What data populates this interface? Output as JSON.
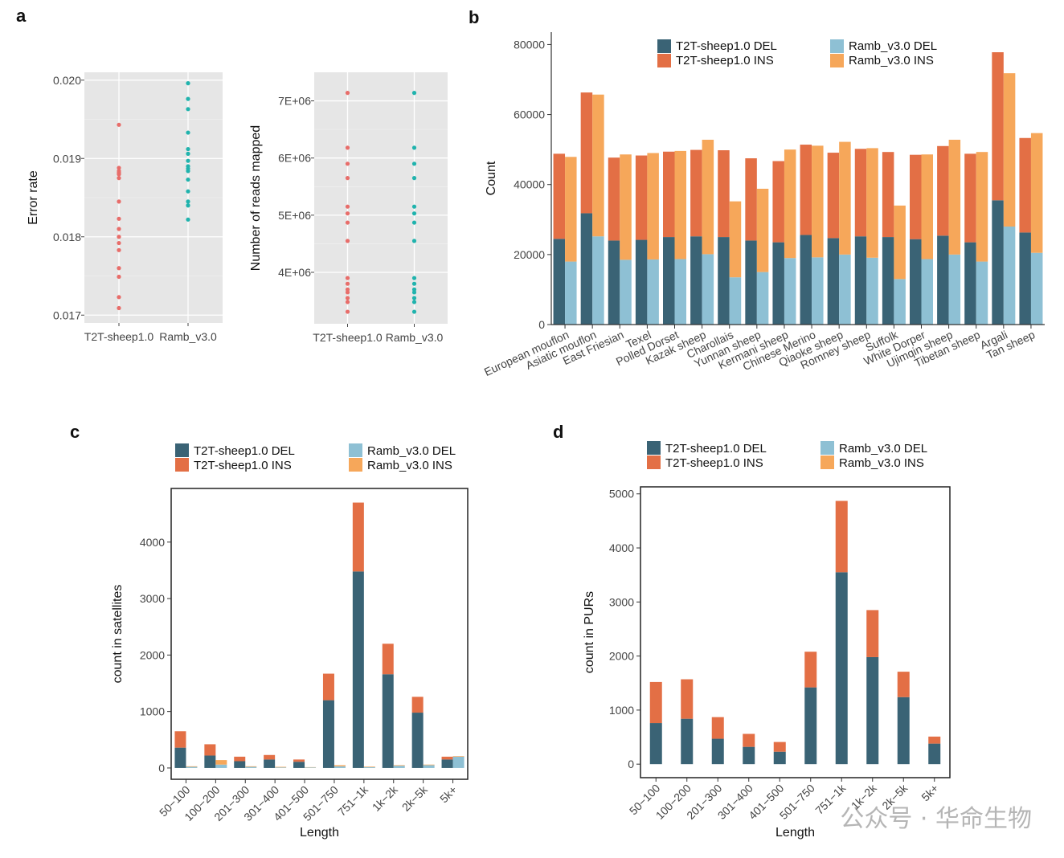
{
  "panel_labels": {
    "a": "a",
    "b": "b",
    "c": "c",
    "d": "d"
  },
  "colors": {
    "t2t_del": "#3a6375",
    "t2t_ins": "#e36f45",
    "ramb_del": "#8ec0d4",
    "ramb_ins": "#f6a75a",
    "dot_t2t": "#e86d6a",
    "dot_ramb": "#20b3ad",
    "panel_bg": "#e6e6e6"
  },
  "legend": {
    "t2t_del": "T2T-sheep1.0 DEL",
    "t2t_ins": "T2T-sheep1.0 INS",
    "ramb_del": "Ramb_v3.0 DEL",
    "ramb_ins": "Ramb_v3.0 INS"
  },
  "watermark": "公众号 · 华命生物",
  "chart_data": [
    {
      "type": "scatter",
      "panel": "a-left",
      "ylabel": "Error rate",
      "categories": [
        "T2T-sheep1.0",
        "Ramb_v3.0"
      ],
      "ylim": [
        0.0169,
        0.0201
      ],
      "yticks": [
        0.017,
        0.018,
        0.019,
        0.02
      ],
      "ytick_labels": [
        "0.017",
        "0.018",
        "0.019",
        "0.020"
      ],
      "series": [
        {
          "values": [
            0.01943,
            0.01888,
            0.01884,
            0.01882,
            0.0188,
            0.0188,
            0.01875,
            0.01845,
            0.01823,
            0.0181,
            0.018,
            0.01792,
            0.01783,
            0.0176,
            0.01749,
            0.01723,
            0.01709
          ]
        },
        {
          "values": [
            0.01996,
            0.01976,
            0.01963,
            0.01933,
            0.01912,
            0.01906,
            0.01897,
            0.0189,
            0.01887,
            0.01884,
            0.01873,
            0.01858,
            0.01845,
            0.0184,
            0.01822
          ]
        }
      ]
    },
    {
      "type": "scatter",
      "panel": "a-right",
      "ylabel": "Number of reads mapped",
      "categories": [
        "T2T-sheep1.0",
        "Ramb_v3.0"
      ],
      "ylim": [
        3100000,
        7500000
      ],
      "yticks": [
        4000000,
        5000000,
        6000000,
        7000000
      ],
      "ytick_labels": [
        "4E+06",
        "5E+06",
        "6E+06",
        "7E+06"
      ],
      "series": [
        {
          "values": [
            7140000,
            6180000,
            5900000,
            5650000,
            5150000,
            5030000,
            4870000,
            4550000,
            3900000,
            3800000,
            3700000,
            3650000,
            3550000,
            3480000,
            3310000
          ]
        },
        {
          "values": [
            7140000,
            6180000,
            5900000,
            5650000,
            5150000,
            5030000,
            4870000,
            4550000,
            3900000,
            3800000,
            3700000,
            3650000,
            3550000,
            3480000,
            3310000
          ]
        }
      ]
    },
    {
      "type": "bar",
      "panel": "b",
      "ylabel": "Count",
      "ylim": [
        0,
        84000
      ],
      "yticks": [
        0,
        20000,
        40000,
        60000,
        80000
      ],
      "categories": [
        "European mouflon",
        "Asiatic mouflon",
        "East Friesian",
        "Texel",
        "Polled Dorset",
        "Kazak sheep",
        "Charollais",
        "Yunnan sheep",
        "Kermani sheep",
        "Chinese Merino",
        "Qiaoke sheep",
        "Romney sheep",
        "Suffolk",
        "White Dorper",
        "Ujimqin sheep",
        "Tibetan sheep",
        "Argali",
        "Tan sheep"
      ],
      "series": [
        {
          "name": "T2T-sheep1.0 DEL",
          "stack": "t2t",
          "values": [
            24500,
            31800,
            24000,
            24200,
            25000,
            25200,
            25000,
            24000,
            23500,
            25600,
            24700,
            25200,
            25000,
            24400,
            25400,
            23500,
            35500,
            26300
          ]
        },
        {
          "name": "T2T-sheep1.0 INS",
          "stack": "t2t",
          "values": [
            24300,
            34500,
            23700,
            24100,
            24400,
            24700,
            24800,
            23500,
            23200,
            25800,
            24400,
            25000,
            24300,
            24100,
            25600,
            25300,
            42300,
            27000
          ]
        },
        {
          "name": "Ramb_v3.0 DEL",
          "stack": "ramb",
          "values": [
            18000,
            25200,
            18500,
            18600,
            18700,
            20100,
            13500,
            15000,
            19000,
            19200,
            20000,
            19100,
            13000,
            18700,
            20000,
            18000,
            28000,
            20500
          ]
        },
        {
          "name": "Ramb_v3.0 INS",
          "stack": "ramb",
          "values": [
            29900,
            40500,
            30100,
            30400,
            30900,
            32700,
            21700,
            23800,
            31000,
            31900,
            32200,
            31300,
            21000,
            29900,
            32800,
            31300,
            43800,
            34200
          ]
        }
      ]
    },
    {
      "type": "bar",
      "panel": "c",
      "xlabel": "Length",
      "ylabel": "count in satellites",
      "ylim": [
        -200,
        4950
      ],
      "yticks": [
        0,
        1000,
        2000,
        3000,
        4000
      ],
      "categories": [
        "50−100",
        "100−200",
        "201−300",
        "301−400",
        "401−500",
        "501−750",
        "751−1k",
        "1k−2k",
        "2k−5k",
        "5k+"
      ],
      "series": [
        {
          "name": "T2T-sheep1.0 DEL",
          "stack": "t2t",
          "values": [
            360,
            220,
            120,
            150,
            110,
            1200,
            3480,
            1660,
            980,
            150
          ]
        },
        {
          "name": "T2T-sheep1.0 INS",
          "stack": "t2t",
          "values": [
            290,
            200,
            80,
            80,
            40,
            470,
            1220,
            540,
            280,
            50
          ]
        },
        {
          "name": "Ramb_v3.0 DEL",
          "stack": "ramb",
          "values": [
            20,
            60,
            20,
            10,
            10,
            30,
            15,
            40,
            50,
            200
          ]
        },
        {
          "name": "Ramb_v3.0 INS",
          "stack": "ramb",
          "values": [
            10,
            80,
            10,
            10,
            5,
            20,
            10,
            10,
            10,
            10
          ]
        }
      ]
    },
    {
      "type": "bar",
      "panel": "d",
      "xlabel": "Length",
      "ylabel": "count in PURs",
      "ylim": [
        -250,
        5130
      ],
      "yticks": [
        0,
        1000,
        2000,
        3000,
        4000,
        5000
      ],
      "categories": [
        "50−100",
        "100−200",
        "201−300",
        "301−400",
        "401−500",
        "501−750",
        "751−1k",
        "1k−2k",
        "2k−5k",
        "5k+"
      ],
      "series": [
        {
          "name": "T2T-sheep1.0 DEL",
          "stack": "t2t",
          "values": [
            760,
            840,
            470,
            320,
            230,
            1420,
            3550,
            1980,
            1240,
            380
          ]
        },
        {
          "name": "T2T-sheep1.0 INS",
          "stack": "t2t",
          "values": [
            760,
            730,
            400,
            240,
            180,
            660,
            1320,
            870,
            470,
            130
          ]
        }
      ]
    }
  ]
}
